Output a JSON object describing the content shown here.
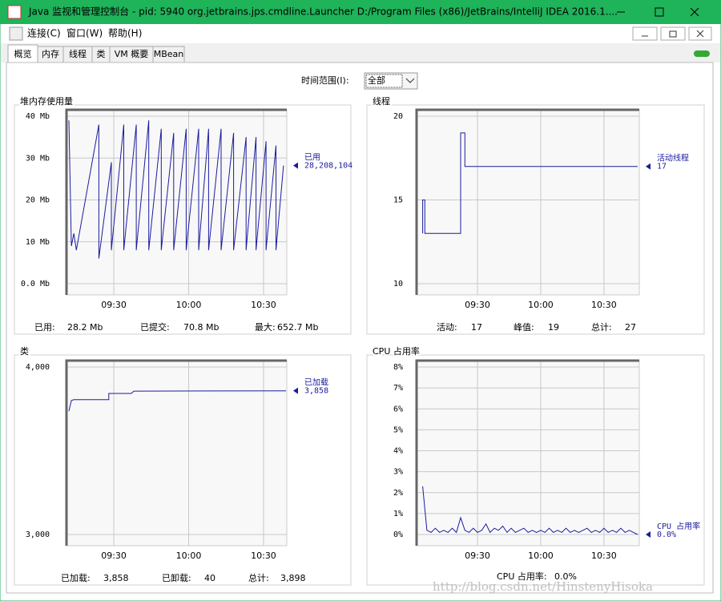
{
  "window": {
    "title": "Java 监视和管理控制台 - pid: 5940 org.jetbrains.jps.cmdline.Launcher D:/Program Files (x86)/JetBrains/IntelliJ IDEA 2016.1...."
  },
  "menu": [
    "连接(C)",
    "窗口(W)",
    "帮助(H)"
  ],
  "tabs": [
    "概览",
    "内存",
    "线程",
    "类",
    "VM 概要",
    "MBean"
  ],
  "time_range": {
    "label": "时间范围(I):",
    "value": "全部"
  },
  "watermark": "http://blog.csdn.net/HinstenyHisoka",
  "chart_data": [
    {
      "type": "line",
      "title": "堆内存使用量",
      "x": [
        "09:12",
        "09:13",
        "09:14",
        "09:15",
        "09:24",
        "09:24",
        "09:29",
        "09:29",
        "09:34",
        "09:34",
        "09:39",
        "09:39",
        "09:44",
        "09:44",
        "09:49",
        "09:49",
        "09:54",
        "09:54",
        "09:59",
        "09:59",
        "10:04",
        "10:04",
        "10:08",
        "10:08",
        "10:13",
        "10:13",
        "10:18",
        "10:18",
        "10:23",
        "10:23",
        "10:27",
        "10:27",
        "10:31",
        "10:31",
        "10:35",
        "10:35",
        "10:38"
      ],
      "xlim": [
        "09:12",
        "10:39"
      ],
      "xticks": [
        "09:30",
        "10:00",
        "10:30"
      ],
      "ylim": [
        0,
        40
      ],
      "yticks": [
        {
          "value": 0,
          "label": "0.0 Mb"
        },
        {
          "value": 10,
          "label": "10 Mb"
        },
        {
          "value": 20,
          "label": "20 Mb"
        },
        {
          "value": 30,
          "label": "30 Mb"
        },
        {
          "value": 40,
          "label": "40 Mb"
        }
      ],
      "grid": true,
      "series": [
        {
          "name": "已用",
          "color": "#1c1c9e",
          "values": [
            39,
            9,
            12,
            8,
            38,
            6,
            29,
            8,
            38,
            8,
            38,
            8,
            39,
            8,
            37,
            8,
            36,
            8,
            37,
            8,
            37,
            8,
            37,
            8,
            37,
            8,
            36,
            8,
            35,
            8,
            35,
            8,
            34,
            8,
            33,
            8,
            28.208104
          ],
          "current": {
            "value": 28.208104,
            "label": "28,208,104"
          }
        }
      ],
      "stats": [
        {
          "label": "已用:",
          "value": "28.2 Mb"
        },
        {
          "label": "已提交:",
          "value": "70.8 Mb"
        },
        {
          "label": "最大:",
          "value": "652.7 Mb"
        }
      ]
    },
    {
      "type": "line",
      "title": "线程",
      "x": [
        "09:04",
        "09:04",
        "09:05",
        "09:05",
        "09:22",
        "09:22",
        "09:24",
        "09:24",
        "10:46"
      ],
      "xlim": [
        "09:03",
        "10:46"
      ],
      "xticks": [
        "09:30",
        "10:00",
        "10:30"
      ],
      "ylim": [
        10,
        20
      ],
      "yticks": [
        10,
        15,
        20
      ],
      "grid": true,
      "series": [
        {
          "name": "活动线程",
          "color": "#1c1c9e",
          "values": [
            13,
            15,
            15,
            13,
            13,
            19,
            19,
            17,
            17
          ],
          "current": 17
        }
      ],
      "stats": [
        {
          "label": "活动:",
          "value": "17"
        },
        {
          "label": "峰值:",
          "value": "19"
        },
        {
          "label": "总计:",
          "value": "27"
        }
      ]
    },
    {
      "type": "line",
      "title": "类",
      "x": [
        "09:12",
        "09:13",
        "09:14",
        "09:28",
        "09:28",
        "09:37",
        "09:38",
        "10:39"
      ],
      "xlim": [
        "09:12",
        "10:39"
      ],
      "xticks": [
        "09:30",
        "10:00",
        "10:30"
      ],
      "ylim": [
        3000,
        4000
      ],
      "yticks": [
        {
          "value": 3000,
          "label": "3,000"
        },
        {
          "value": 4000,
          "label": "4,000"
        }
      ],
      "grid": true,
      "series": [
        {
          "name": "已加载",
          "color": "#1c1c9e",
          "values": [
            3737,
            3800,
            3805,
            3805,
            3842,
            3842,
            3856,
            3858
          ],
          "current": {
            "value": 3858,
            "label": "3,858"
          }
        }
      ],
      "stats": [
        {
          "label": "已加载:",
          "value": "3,858"
        },
        {
          "label": "已卸载:",
          "value": "40"
        },
        {
          "label": "总计:",
          "value": "3,898"
        }
      ]
    },
    {
      "type": "line",
      "title": "CPU 占用率",
      "x": [
        "09:04",
        "09:06",
        "09:08",
        "09:10",
        "09:12",
        "09:14",
        "09:16",
        "09:18",
        "09:20",
        "09:22",
        "09:24",
        "09:26",
        "09:28",
        "09:30",
        "09:32",
        "09:34",
        "09:36",
        "09:38",
        "09:40",
        "09:42",
        "09:44",
        "09:46",
        "09:48",
        "09:50",
        "09:52",
        "09:54",
        "09:56",
        "09:58",
        "10:00",
        "10:02",
        "10:04",
        "10:06",
        "10:08",
        "10:10",
        "10:12",
        "10:14",
        "10:16",
        "10:18",
        "10:20",
        "10:22",
        "10:24",
        "10:26",
        "10:28",
        "10:30",
        "10:32",
        "10:34",
        "10:36",
        "10:38",
        "10:40",
        "10:42",
        "10:44",
        "10:46"
      ],
      "xlim": [
        "09:03",
        "10:46"
      ],
      "xticks": [
        "09:30",
        "10:00",
        "10:30"
      ],
      "ylim": [
        0,
        8
      ],
      "yticks": [
        {
          "value": 0,
          "label": "0%"
        },
        {
          "value": 1,
          "label": "1%"
        },
        {
          "value": 2,
          "label": "2%"
        },
        {
          "value": 3,
          "label": "3%"
        },
        {
          "value": 4,
          "label": "4%"
        },
        {
          "value": 5,
          "label": "5%"
        },
        {
          "value": 6,
          "label": "6%"
        },
        {
          "value": 7,
          "label": "7%"
        },
        {
          "value": 8,
          "label": "8%"
        }
      ],
      "grid": true,
      "series": [
        {
          "name": "CPU 占用率",
          "color": "#1c1c9e",
          "values": [
            2.3,
            0.2,
            0.1,
            0.3,
            0.1,
            0.2,
            0.1,
            0.3,
            0.1,
            0.8,
            0.2,
            0.1,
            0.3,
            0.1,
            0.2,
            0.5,
            0.1,
            0.3,
            0.2,
            0.4,
            0.1,
            0.3,
            0.1,
            0.2,
            0.3,
            0.1,
            0.2,
            0.1,
            0.2,
            0.1,
            0.3,
            0.1,
            0.2,
            0.1,
            0.3,
            0.1,
            0.2,
            0.1,
            0.2,
            0.3,
            0.1,
            0.2,
            0.1,
            0.3,
            0.1,
            0.2,
            0.1,
            0.3,
            0.1,
            0.2,
            0.1,
            0.0
          ],
          "current": {
            "value": 0.0,
            "label": "0.0%"
          }
        }
      ],
      "stats": [
        {
          "label": "CPU 占用率:",
          "value": "0.0%"
        }
      ]
    }
  ]
}
